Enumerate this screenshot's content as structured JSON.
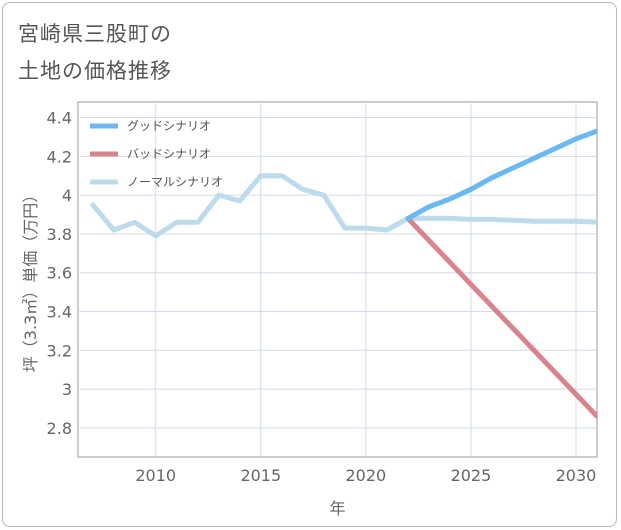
{
  "title_line1": "宮崎県三股町の",
  "title_line2": "土地の価格推移",
  "chart_data": {
    "type": "line",
    "xlabel": "年",
    "ylabel": "坪（3.3㎡）単価（万円）",
    "xlim": [
      2006.3,
      2031
    ],
    "ylim": [
      2.65,
      4.48
    ],
    "x_ticks": [
      2010,
      2015,
      2020,
      2025,
      2030
    ],
    "y_ticks": [
      2.8,
      3,
      3.2,
      3.4,
      3.6,
      3.8,
      4,
      4.2,
      4.4
    ],
    "x_tick_labels": [
      "2010",
      "2015",
      "2020",
      "2025",
      "2030"
    ],
    "y_tick_labels": [
      "2.8",
      "3",
      "3.2",
      "3.4",
      "3.6",
      "3.8",
      "4",
      "4.2",
      "4.4"
    ],
    "legend_position": "top-left",
    "series": [
      {
        "name": "グッドシナリオ",
        "color": "#6cb8f0",
        "x": [
          2022,
          2023,
          2024,
          2025,
          2026,
          2027,
          2028,
          2029,
          2030,
          2031
        ],
        "y": [
          3.88,
          3.94,
          3.98,
          4.03,
          4.09,
          4.14,
          4.19,
          4.24,
          4.29,
          4.33
        ]
      },
      {
        "name": "バッドシナリオ",
        "color": "#d9848c",
        "x": [
          2022,
          2031
        ],
        "y": [
          3.88,
          2.86
        ]
      },
      {
        "name": "ノーマルシナリオ",
        "color": "#bcdcec",
        "x": [
          2007,
          2008,
          2009,
          2010,
          2011,
          2012,
          2013,
          2014,
          2015,
          2016,
          2017,
          2018,
          2019,
          2020,
          2021,
          2022,
          2023,
          2024,
          2025,
          2026,
          2027,
          2028,
          2029,
          2030,
          2031
        ],
        "y": [
          3.95,
          3.82,
          3.86,
          3.79,
          3.86,
          3.86,
          4.0,
          3.97,
          4.1,
          4.1,
          4.03,
          4.0,
          3.83,
          3.83,
          3.82,
          3.88,
          3.88,
          3.88,
          3.875,
          3.875,
          3.87,
          3.865,
          3.865,
          3.865,
          3.86
        ]
      }
    ]
  }
}
